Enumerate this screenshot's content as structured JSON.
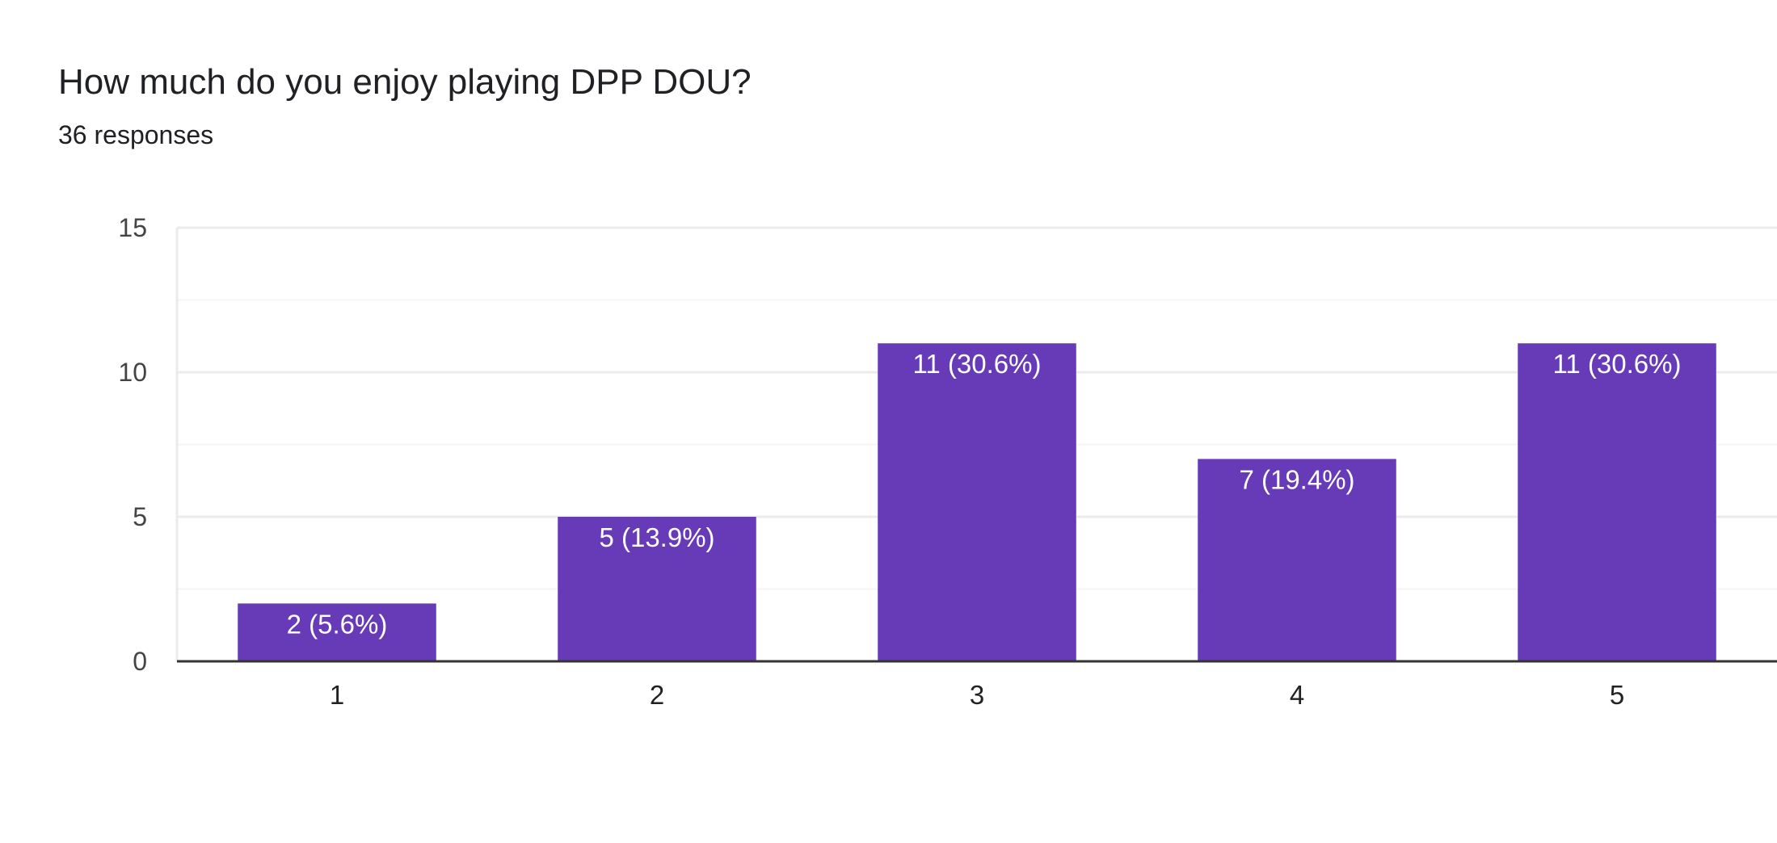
{
  "question": {
    "title": "How much do you enjoy playing DPP DOU?",
    "responses": "36 responses"
  },
  "colors": {
    "bar": "#673ab7",
    "grid": "#ebebeb",
    "minor_grid": "#f5f5f5",
    "axis": "#333333",
    "bar_label": "#ffffff"
  },
  "chart_data": {
    "type": "bar",
    "categories": [
      "1",
      "2",
      "3",
      "4",
      "5"
    ],
    "values": [
      2,
      5,
      11,
      7,
      11
    ],
    "data_labels": [
      "2 (5.6%)",
      "5 (13.9%)",
      "11 (30.6%)",
      "7 (19.4%)",
      "11 (30.6%)"
    ],
    "title": "How much do you enjoy playing DPP DOU?",
    "subtitle": "36 responses",
    "xlabel": "",
    "ylabel": "",
    "ylim": [
      0,
      15
    ],
    "yticks": [
      0,
      5,
      10,
      15
    ],
    "grid": true,
    "legend": "none"
  }
}
